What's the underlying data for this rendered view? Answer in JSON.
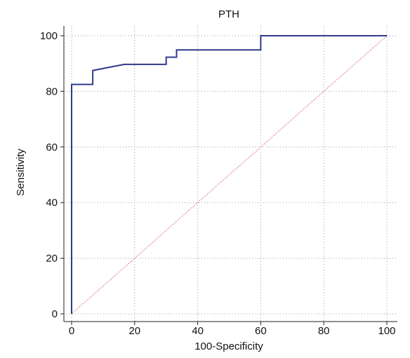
{
  "chart_data": {
    "type": "line",
    "title": "PTH",
    "xlabel": "100-Specificity",
    "ylabel": "Sensitivity",
    "xlim": [
      0,
      100
    ],
    "ylim": [
      0,
      100
    ],
    "x_ticks": [
      "0",
      "20",
      "40",
      "60",
      "80",
      "100"
    ],
    "y_ticks": [
      "0",
      "20",
      "40",
      "60",
      "80",
      "100"
    ],
    "grid": true,
    "legend": "none",
    "series": [
      {
        "style": "solid",
        "color": "#2e3a8c",
        "points": [
          [
            0,
            0
          ],
          [
            0,
            82.5
          ],
          [
            6.7,
            82.5
          ],
          [
            6.7,
            87.5
          ],
          [
            16.7,
            89.7
          ],
          [
            30.0,
            89.7
          ],
          [
            30.0,
            92.3
          ],
          [
            33.3,
            92.3
          ],
          [
            33.3,
            94.9
          ],
          [
            60.0,
            94.9
          ],
          [
            60.0,
            100
          ],
          [
            100,
            100
          ]
        ]
      },
      {
        "style": "dotted",
        "color": "#cc2222",
        "points": [
          [
            0,
            0
          ],
          [
            100,
            100
          ]
        ]
      }
    ]
  }
}
